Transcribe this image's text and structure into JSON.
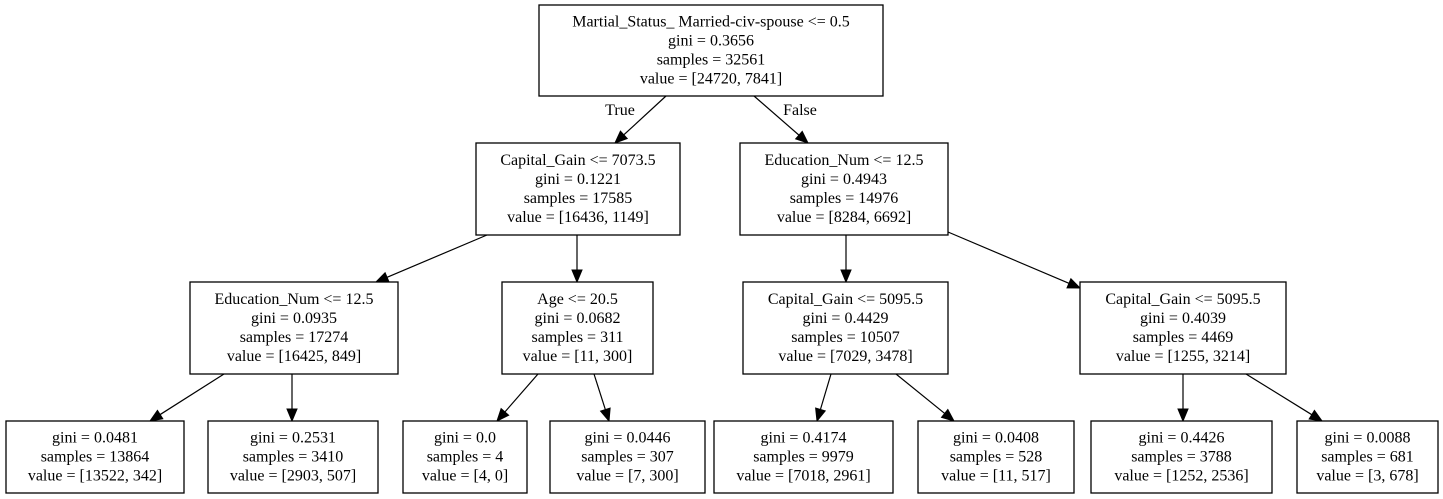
{
  "tree": {
    "nodes": [
      {
        "id": "n0",
        "lines": [
          "Martial_Status_ Married-civ-spouse <= 0.5",
          "gini = 0.3656",
          "samples = 32561",
          "value = [24720, 7841]"
        ]
      },
      {
        "id": "n1",
        "lines": [
          "Capital_Gain <= 7073.5",
          "gini = 0.1221",
          "samples = 17585",
          "value = [16436, 1149]"
        ]
      },
      {
        "id": "n2",
        "lines": [
          "Education_Num <= 12.5",
          "gini = 0.4943",
          "samples = 14976",
          "value = [8284, 6692]"
        ]
      },
      {
        "id": "n3",
        "lines": [
          "Education_Num <= 12.5",
          "gini = 0.0935",
          "samples = 17274",
          "value = [16425, 849]"
        ]
      },
      {
        "id": "n4",
        "lines": [
          "Age <= 20.5",
          "gini = 0.0682",
          "samples = 311",
          "value = [11, 300]"
        ]
      },
      {
        "id": "n5",
        "lines": [
          "Capital_Gain <= 5095.5",
          "gini = 0.4429",
          "samples = 10507",
          "value = [7029, 3478]"
        ]
      },
      {
        "id": "n6",
        "lines": [
          "Capital_Gain <= 5095.5",
          "gini = 0.4039",
          "samples = 4469",
          "value = [1255, 3214]"
        ]
      },
      {
        "id": "n7",
        "lines": [
          "gini = 0.0481",
          "samples = 13864",
          "value = [13522, 342]"
        ]
      },
      {
        "id": "n8",
        "lines": [
          "gini = 0.2531",
          "samples = 3410",
          "value = [2903, 507]"
        ]
      },
      {
        "id": "n9",
        "lines": [
          "gini = 0.0",
          "samples = 4",
          "value = [4, 0]"
        ]
      },
      {
        "id": "n10",
        "lines": [
          "gini = 0.0446",
          "samples = 307",
          "value = [7, 300]"
        ]
      },
      {
        "id": "n11",
        "lines": [
          "gini = 0.4174",
          "samples = 9979",
          "value = [7018, 2961]"
        ]
      },
      {
        "id": "n12",
        "lines": [
          "gini = 0.0408",
          "samples = 528",
          "value = [11, 517]"
        ]
      },
      {
        "id": "n13",
        "lines": [
          "gini = 0.4426",
          "samples = 3788",
          "value = [1252, 2536]"
        ]
      },
      {
        "id": "n14",
        "lines": [
          "gini = 0.0088",
          "samples = 681",
          "value = [3, 678]"
        ]
      }
    ],
    "edges": [
      {
        "from": "n0",
        "to": "n1",
        "label": "True"
      },
      {
        "from": "n0",
        "to": "n2",
        "label": "False"
      },
      {
        "from": "n1",
        "to": "n3",
        "label": ""
      },
      {
        "from": "n1",
        "to": "n4",
        "label": ""
      },
      {
        "from": "n2",
        "to": "n5",
        "label": ""
      },
      {
        "from": "n2",
        "to": "n6",
        "label": ""
      },
      {
        "from": "n3",
        "to": "n7",
        "label": ""
      },
      {
        "from": "n3",
        "to": "n8",
        "label": ""
      },
      {
        "from": "n4",
        "to": "n9",
        "label": ""
      },
      {
        "from": "n4",
        "to": "n10",
        "label": ""
      },
      {
        "from": "n5",
        "to": "n11",
        "label": ""
      },
      {
        "from": "n5",
        "to": "n12",
        "label": ""
      },
      {
        "from": "n6",
        "to": "n13",
        "label": ""
      },
      {
        "from": "n6",
        "to": "n14",
        "label": ""
      }
    ]
  }
}
